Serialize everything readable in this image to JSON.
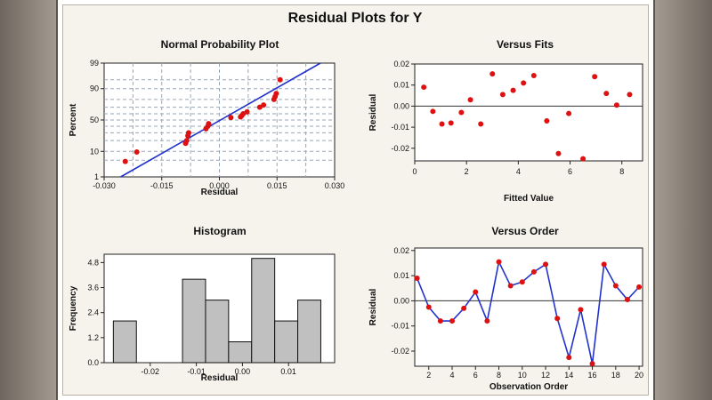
{
  "main_title": "Residual Plots for Y",
  "colors": {
    "point": "#dd1111",
    "line": "#2233cc",
    "bar": "#c0c0c0",
    "grid": "#9aa6b8"
  },
  "chart_data": [
    {
      "type": "scatter",
      "title": "Normal Probability Plot",
      "xlabel": "Residual",
      "ylabel": "Percent",
      "xlim": [
        -0.03,
        0.03
      ],
      "xticks": [
        -0.03,
        -0.015,
        0.0,
        0.015,
        0.03
      ],
      "xtick_labels": [
        "-0.030",
        "-0.015",
        "0.000",
        "0.015",
        "0.030"
      ],
      "yticks": [
        1,
        10,
        50,
        90,
        99
      ],
      "ytick_labels": [
        "1",
        "10",
        "50",
        "90",
        "99"
      ],
      "fit_line": [
        [
          -0.0257,
          1
        ],
        [
          0.0263,
          99
        ]
      ],
      "points": [
        [
          -0.0245,
          4.5
        ],
        [
          -0.0215,
          9.5
        ],
        [
          -0.0088,
          17
        ],
        [
          -0.0085,
          20
        ],
        [
          -0.0082,
          26
        ],
        [
          -0.008,
          30
        ],
        [
          -0.0035,
          36
        ],
        [
          -0.003,
          40
        ],
        [
          -0.0028,
          44
        ],
        [
          0.003,
          54
        ],
        [
          0.0055,
          55
        ],
        [
          0.0058,
          57
        ],
        [
          0.0062,
          60
        ],
        [
          0.0072,
          63
        ],
        [
          0.0105,
          70
        ],
        [
          0.0115,
          73
        ],
        [
          0.0142,
          80
        ],
        [
          0.0145,
          83
        ],
        [
          0.0148,
          86
        ],
        [
          0.0158,
          95
        ]
      ]
    },
    {
      "type": "scatter",
      "title": "Versus Fits",
      "xlabel": "Fitted Value",
      "ylabel": "Residual",
      "xlim": [
        0,
        8.8
      ],
      "ylim": [
        -0.026,
        0.02
      ],
      "xticks": [
        0,
        2,
        4,
        6,
        8
      ],
      "xtick_labels": [
        "0",
        "2",
        "4",
        "6",
        "8"
      ],
      "yticks": [
        0.02,
        0.01,
        0.0,
        -0.01,
        -0.02
      ],
      "ytick_labels": [
        "0.02",
        "0.01",
        "0.00",
        "-0.01",
        "-0.02"
      ],
      "reference_line": 0,
      "points": [
        [
          0.35,
          0.009
        ],
        [
          0.7,
          -0.0025
        ],
        [
          1.05,
          -0.0085
        ],
        [
          1.4,
          -0.008
        ],
        [
          1.8,
          -0.003
        ],
        [
          2.15,
          0.003
        ],
        [
          2.55,
          -0.0085
        ],
        [
          3.0,
          0.0153
        ],
        [
          3.4,
          0.0055
        ],
        [
          3.8,
          0.0075
        ],
        [
          4.2,
          0.011
        ],
        [
          4.6,
          0.0145
        ],
        [
          5.1,
          -0.007
        ],
        [
          5.55,
          -0.0225
        ],
        [
          5.95,
          -0.0035
        ],
        [
          6.5,
          -0.025
        ],
        [
          6.95,
          0.014
        ],
        [
          7.4,
          0.006
        ],
        [
          7.8,
          0.0005
        ],
        [
          8.3,
          0.0055
        ]
      ]
    },
    {
      "type": "bar",
      "title": "Histogram",
      "xlabel": "Residual",
      "ylabel": "Frequency",
      "xlim": [
        -0.03,
        0.02
      ],
      "ylim": [
        0,
        5.2
      ],
      "xticks": [
        -0.02,
        -0.01,
        0.0,
        0.01
      ],
      "xtick_labels": [
        "-0.02",
        "-0.01",
        "0.00",
        "0.01"
      ],
      "yticks": [
        0,
        1.2,
        2.4,
        3.6,
        4.8
      ],
      "ytick_labels": [
        "0.0",
        "1.2",
        "2.4",
        "3.6",
        "4.8"
      ],
      "bins": [
        {
          "from": -0.028,
          "to": -0.023,
          "count": 2
        },
        {
          "from": -0.023,
          "to": -0.018,
          "count": 0
        },
        {
          "from": -0.018,
          "to": -0.013,
          "count": 0
        },
        {
          "from": -0.013,
          "to": -0.008,
          "count": 4
        },
        {
          "from": -0.008,
          "to": -0.003,
          "count": 3
        },
        {
          "from": -0.003,
          "to": 0.002,
          "count": 1
        },
        {
          "from": 0.002,
          "to": 0.007,
          "count": 5
        },
        {
          "from": 0.007,
          "to": 0.012,
          "count": 2
        },
        {
          "from": 0.012,
          "to": 0.017,
          "count": 3
        }
      ]
    },
    {
      "type": "line",
      "title": "Versus Order",
      "xlabel": "Observation Order",
      "ylabel": "Residual",
      "xlim": [
        0.8,
        20.3
      ],
      "ylim": [
        -0.026,
        0.021
      ],
      "xticks": [
        2,
        4,
        6,
        8,
        10,
        12,
        14,
        16,
        18,
        20
      ],
      "xtick_labels": [
        "2",
        "4",
        "6",
        "8",
        "10",
        "12",
        "14",
        "16",
        "18",
        "20"
      ],
      "yticks": [
        0.02,
        0.01,
        0.0,
        -0.01,
        -0.02
      ],
      "ytick_labels": [
        "0.02",
        "0.01",
        "0.00",
        "-0.01",
        "-0.02"
      ],
      "reference_line": 0,
      "x": [
        1,
        2,
        3,
        4,
        5,
        6,
        7,
        8,
        9,
        10,
        11,
        12,
        13,
        14,
        15,
        16,
        17,
        18,
        19,
        20
      ],
      "values": [
        0.009,
        -0.0025,
        -0.008,
        -0.008,
        -0.003,
        0.0035,
        -0.008,
        0.0155,
        0.006,
        0.0075,
        0.0115,
        0.0145,
        -0.007,
        -0.0225,
        -0.0035,
        -0.025,
        0.0145,
        0.006,
        0.0005,
        0.0055
      ]
    }
  ]
}
